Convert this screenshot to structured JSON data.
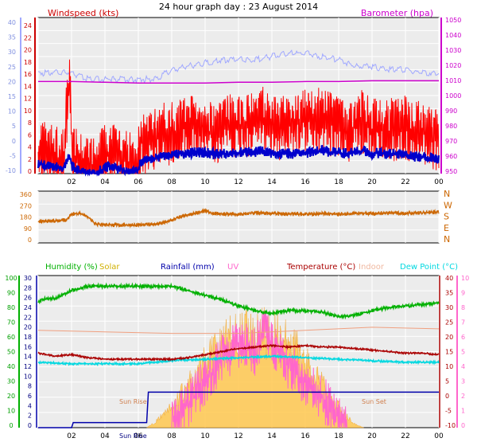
{
  "title": "24 hour graph day : 23 August 2014",
  "chart_data": [
    {
      "type": "line",
      "panel": "wind-barometer",
      "left_label": "Windspeed (kts)",
      "right_label": "Barometer (hpa)",
      "outer_left_ticks": [
        "40",
        "35",
        "30",
        "25",
        "20",
        "15",
        "10",
        "5",
        "0",
        "-5",
        "-10"
      ],
      "left_ticks": [
        "24",
        "22",
        "20",
        "18",
        "16",
        "14",
        "12",
        "10",
        "8",
        "6",
        "4",
        "2",
        "0"
      ],
      "right_ticks": [
        "1050",
        "1040",
        "1030",
        "1020",
        "1010",
        "1000",
        "990",
        "980",
        "970",
        "960",
        "950"
      ],
      "x_ticks": [
        "02",
        "04",
        "06",
        "08",
        "10",
        "12",
        "14",
        "16",
        "18",
        "20",
        "22",
        "00"
      ],
      "ylim_kts": [
        0,
        24
      ],
      "ylim_hpa": [
        950,
        1050
      ],
      "ylim_outer": [
        -10,
        40
      ],
      "colors": {
        "wind_speed": "#ff0000",
        "wind_average": "#0000cc",
        "gust": "#a0a8ff",
        "barometer": "#cc00cc"
      },
      "series": [
        {
          "key": "wind_speed",
          "x": [
            0,
            0.5,
            1,
            1.5,
            1.9,
            2,
            2.3,
            2.6,
            3,
            3.5,
            4,
            4.5,
            5,
            5.5,
            5.9,
            6.2,
            6.6,
            7,
            7.5,
            8,
            8.5,
            9,
            9.5,
            10,
            10.5,
            11,
            11.5,
            12,
            12.5,
            13,
            13.5,
            14,
            14.5,
            15,
            15.5,
            16,
            16.5,
            17,
            17.5,
            18,
            18.5,
            19,
            19.5,
            20,
            20.5,
            21,
            21.5,
            22,
            22.5,
            23,
            23.5,
            24
          ],
          "y": [
            3.5,
            3,
            2.5,
            2,
            16,
            4,
            2,
            1,
            0.5,
            0.5,
            3,
            3,
            2,
            1.5,
            1,
            5,
            4.5,
            5,
            6,
            6,
            7,
            7.5,
            8,
            7,
            6,
            6.5,
            7.5,
            7,
            7.5,
            8,
            8.5,
            7.5,
            7,
            7.5,
            7.5,
            8,
            8,
            8.5,
            7.5,
            7,
            6.5,
            7.5,
            8,
            6.5,
            7,
            6.5,
            7,
            7,
            6.5,
            6.5,
            5.5,
            5
          ]
        },
        {
          "key": "wind_average",
          "x": [
            0,
            0.5,
            1,
            1.5,
            1.9,
            2,
            2.3,
            2.6,
            3,
            3.5,
            4,
            4.5,
            5,
            5.5,
            5.9,
            6.2,
            6.6,
            7,
            7.5,
            8,
            8.5,
            9,
            9.5,
            10,
            10.5,
            11,
            11.5,
            12,
            12.5,
            13,
            13.5,
            14,
            14.5,
            15,
            15.5,
            16,
            16.5,
            17,
            17.5,
            18,
            18.5,
            19,
            19.5,
            20,
            20.5,
            21,
            21.5,
            22,
            22.5,
            23,
            23.5,
            24
          ],
          "y": [
            1.5,
            1.3,
            1,
            0.9,
            3,
            1.2,
            0.5,
            0.3,
            0,
            0,
            1,
            1,
            0.6,
            0.4,
            0.3,
            2,
            2,
            2.3,
            2.8,
            2.9,
            3.1,
            3.1,
            3.3,
            3.2,
            3,
            3,
            3.1,
            3.2,
            3.4,
            3.3,
            3.5,
            3.2,
            3,
            3.1,
            3.1,
            3.2,
            3.3,
            3.6,
            3.3,
            3.2,
            3.1,
            3.3,
            3.5,
            3.1,
            3.2,
            3,
            3.1,
            3,
            2.6,
            2.6,
            2.4,
            2.3
          ]
        },
        {
          "key": "gust",
          "x": [
            0,
            1,
            2,
            3,
            4,
            5,
            6,
            7,
            8,
            9,
            10,
            11,
            12,
            13,
            14,
            15,
            16,
            17,
            18,
            19,
            20,
            21,
            22,
            23,
            24
          ],
          "y": [
            15.5,
            15.5,
            15.5,
            14.5,
            14.5,
            14.5,
            14.5,
            14.5,
            16,
            16.5,
            17,
            17.5,
            17.5,
            17.5,
            18,
            18.5,
            18.5,
            18,
            17.5,
            16.5,
            16.5,
            16,
            16,
            15.5,
            15.5
          ]
        },
        {
          "key": "barometer",
          "x": [
            0,
            2,
            4,
            6,
            8,
            10,
            12,
            14,
            16,
            18,
            20,
            22,
            24
          ],
          "y": [
            1009,
            1009,
            1008.5,
            1008,
            1008,
            1008,
            1008.5,
            1008.5,
            1009,
            1009,
            1009.5,
            1009.5,
            1009.5
          ]
        }
      ]
    },
    {
      "type": "line",
      "panel": "wind-direction",
      "left_ticks": [
        "360",
        "270",
        "180",
        "90",
        "0"
      ],
      "right_labels": [
        "N",
        "W",
        "S",
        "E",
        "N"
      ],
      "ylim": [
        0,
        360
      ],
      "colors": {
        "direction": "#cc6600"
      },
      "series": [
        {
          "key": "direction",
          "x": [
            0,
            1,
            1.7,
            2,
            2.5,
            3,
            3.3,
            3.5,
            4,
            5,
            6,
            7,
            7.5,
            8,
            8.5,
            9,
            9.5,
            10,
            10.5,
            11,
            12,
            13,
            14,
            15,
            16,
            17,
            18,
            19,
            20,
            21,
            22,
            23,
            24
          ],
          "y": [
            150,
            155,
            160,
            200,
            205,
            180,
            145,
            130,
            125,
            125,
            125,
            130,
            140,
            160,
            180,
            195,
            210,
            225,
            205,
            200,
            200,
            210,
            205,
            200,
            200,
            205,
            200,
            205,
            205,
            210,
            205,
            210,
            215
          ]
        }
      ]
    },
    {
      "type": "line",
      "panel": "environment",
      "legend": [
        "Humidity (%)",
        "Solar",
        "Rainfall (mm)",
        "UV",
        "Temperature (°C)",
        "Indoor",
        "Dew Point (°C)"
      ],
      "humidity_ticks": [
        "100",
        "90",
        "80",
        "70",
        "60",
        "50",
        "40",
        "30",
        "20",
        "10",
        "0"
      ],
      "rain_ticks": [
        "30",
        "28",
        "26",
        "24",
        "22",
        "20",
        "18",
        "16",
        "14",
        "12",
        "10",
        "8",
        "6",
        "4",
        "2",
        "0"
      ],
      "temp_ticks": [
        "40",
        "35",
        "30",
        "25",
        "20",
        "15",
        "10",
        "5",
        "0",
        "-5",
        "-10"
      ],
      "uv_ticks": [
        "10",
        "9",
        "8",
        "7",
        "6",
        "5",
        "4",
        "3",
        "2",
        "1",
        "0"
      ],
      "annotations": [
        "Sun Rise",
        "Sun Set",
        "Sun Rise"
      ],
      "ylim_humidity": [
        0,
        100
      ],
      "ylim_rain": [
        0,
        30
      ],
      "ylim_temp": [
        -10,
        40
      ],
      "colors": {
        "humidity": "#00b000",
        "solar": "#f5b800",
        "rainfall": "#0000aa",
        "uv": "#ff66cc",
        "temperature": "#aa0000",
        "indoor": "#f0a080",
        "dew_point": "#00d8e0"
      },
      "series": [
        {
          "key": "humidity",
          "x": [
            0,
            0.5,
            1,
            2,
            3,
            4,
            5,
            6,
            7,
            8,
            9,
            10,
            11,
            12,
            13,
            14,
            15,
            16,
            17,
            18,
            19,
            20,
            21,
            22,
            23,
            24
          ],
          "y": [
            83,
            85,
            85,
            90,
            93,
            93,
            93,
            93,
            93,
            93,
            90,
            87,
            84,
            80,
            77,
            75,
            77,
            77,
            76,
            73,
            74,
            77,
            79,
            80,
            81,
            82
          ]
        },
        {
          "key": "solar_area",
          "x": [
            6.5,
            7,
            7.5,
            8,
            8.5,
            9,
            9.5,
            10,
            10.5,
            11,
            11.5,
            12,
            12.5,
            13,
            13.5,
            14,
            14.5,
            15,
            15.5,
            16,
            16.5,
            17,
            17.5,
            18,
            18.5,
            19,
            19.5
          ],
          "y": [
            0,
            5,
            12,
            20,
            30,
            40,
            50,
            60,
            70,
            75,
            82,
            86,
            86,
            90,
            88,
            86,
            82,
            78,
            70,
            60,
            50,
            40,
            30,
            20,
            10,
            3,
            0
          ]
        },
        {
          "key": "rainfall",
          "x": [
            0,
            2,
            2.1,
            5.5,
            6.5,
            6.6,
            8,
            23.9,
            24
          ],
          "y": [
            0,
            0,
            1,
            1,
            1,
            7,
            7,
            7,
            7
          ]
        },
        {
          "key": "uv",
          "x": [
            8,
            9,
            10,
            11,
            12,
            13,
            13.5,
            14,
            15,
            16,
            17,
            18,
            18.5
          ],
          "y": [
            0.5,
            1.5,
            3,
            4.5,
            5.5,
            5,
            6.5,
            5.5,
            4,
            3,
            2,
            0.8,
            0.2
          ]
        },
        {
          "key": "temperature",
          "x": [
            0,
            1,
            2,
            3,
            4,
            5,
            6,
            7,
            8,
            9,
            10,
            11,
            12,
            13,
            14,
            15,
            16,
            17,
            18,
            19,
            20,
            21,
            22,
            23,
            24
          ],
          "y": [
            14.5,
            13.5,
            14,
            13,
            12.5,
            12.5,
            12.5,
            12.5,
            12.5,
            13,
            14,
            15,
            16,
            16.5,
            17,
            16.5,
            17,
            16.5,
            16.5,
            16,
            15.5,
            15,
            14.5,
            14.5,
            14
          ]
        },
        {
          "key": "indoor",
          "x": [
            0,
            4,
            8,
            12,
            16,
            20,
            24
          ],
          "y": [
            22,
            21.5,
            21,
            21,
            22,
            23,
            22.5
          ]
        },
        {
          "key": "dew_point",
          "x": [
            0,
            2,
            4,
            6,
            8,
            10,
            12,
            14,
            16,
            18,
            20,
            22,
            24
          ],
          "y": [
            11.5,
            11,
            11,
            11,
            12,
            12.5,
            13,
            13.5,
            13,
            12.5,
            12,
            11.5,
            11.5
          ]
        }
      ]
    }
  ]
}
